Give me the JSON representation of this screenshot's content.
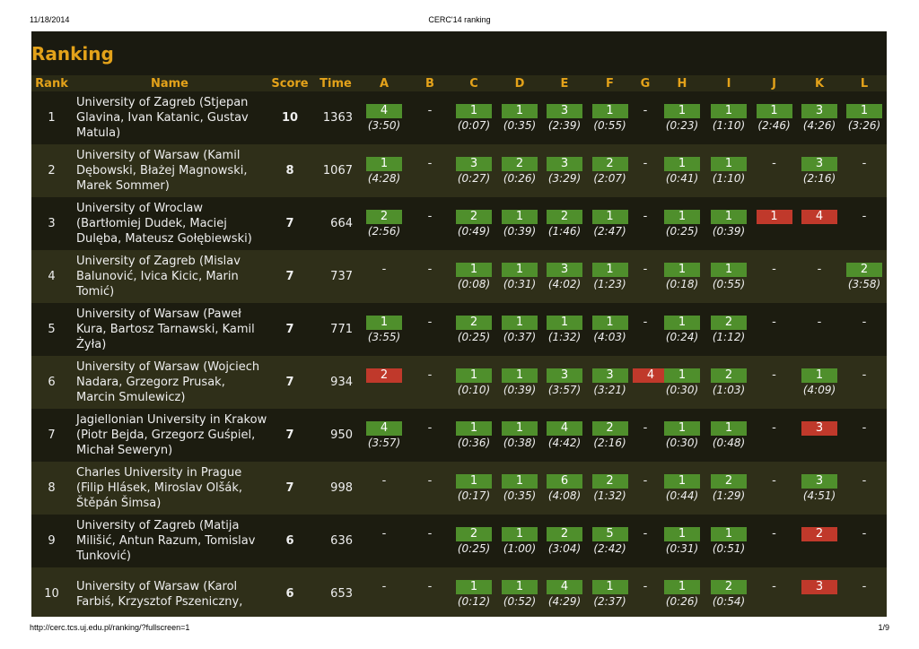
{
  "header": {
    "date": "11/18/2014",
    "title": "CERC'14 ranking"
  },
  "footer": {
    "url": "http://cerc.tcs.uj.edu.pl/ranking/?fullscreen=1",
    "page": "1/9"
  },
  "heading": "Ranking",
  "columns": [
    "Rank",
    "Name",
    "Score",
    "Time",
    "A",
    "B",
    "C",
    "D",
    "E",
    "F",
    "G",
    "H",
    "I",
    "J",
    "K",
    "L"
  ],
  "rows": [
    {
      "rank": 1,
      "name": "University of Zagreb (Stjepan Glavina, Ivan Katanic, Gustav Matula)",
      "score": 10,
      "time": 1363,
      "cells": [
        {
          "tries": 4,
          "time": "(3:50)",
          "solved": true
        },
        "-",
        {
          "tries": 1,
          "time": "(0:07)",
          "solved": true
        },
        {
          "tries": 1,
          "time": "(0:35)",
          "solved": true
        },
        {
          "tries": 3,
          "time": "(2:39)",
          "solved": true
        },
        {
          "tries": 1,
          "time": "(0:55)",
          "solved": true
        },
        "-",
        {
          "tries": 1,
          "time": "(0:23)",
          "solved": true
        },
        {
          "tries": 1,
          "time": "(1:10)",
          "solved": true
        },
        {
          "tries": 1,
          "time": "(2:46)",
          "solved": true
        },
        {
          "tries": 3,
          "time": "(4:26)",
          "solved": true
        },
        {
          "tries": 1,
          "time": "(3:26)",
          "solved": true
        }
      ]
    },
    {
      "rank": 2,
      "name": "University of Warsaw (Kamil Dębowski, Błażej Magnowski, Marek Sommer)",
      "score": 8,
      "time": 1067,
      "cells": [
        {
          "tries": 1,
          "time": "(4:28)",
          "solved": true
        },
        "-",
        {
          "tries": 3,
          "time": "(0:27)",
          "solved": true
        },
        {
          "tries": 2,
          "time": "(0:26)",
          "solved": true
        },
        {
          "tries": 3,
          "time": "(3:29)",
          "solved": true
        },
        {
          "tries": 2,
          "time": "(2:07)",
          "solved": true
        },
        "-",
        {
          "tries": 1,
          "time": "(0:41)",
          "solved": true
        },
        {
          "tries": 1,
          "time": "(1:10)",
          "solved": true
        },
        "-",
        {
          "tries": 3,
          "time": "(2:16)",
          "solved": true
        },
        "-"
      ]
    },
    {
      "rank": 3,
      "name": "University of Wroclaw (Bartłomiej Dudek, Maciej Dulęba, Mateusz Gołębiewski)",
      "score": 7,
      "time": 664,
      "cells": [
        {
          "tries": 2,
          "time": "(2:56)",
          "solved": true
        },
        "-",
        {
          "tries": 2,
          "time": "(0:49)",
          "solved": true
        },
        {
          "tries": 1,
          "time": "(0:39)",
          "solved": true
        },
        {
          "tries": 2,
          "time": "(1:46)",
          "solved": true
        },
        {
          "tries": 1,
          "time": "(2:47)",
          "solved": true
        },
        "-",
        {
          "tries": 1,
          "time": "(0:25)",
          "solved": true
        },
        {
          "tries": 1,
          "time": "(0:39)",
          "solved": true
        },
        {
          "tries": 1,
          "solved": false
        },
        {
          "tries": 4,
          "solved": false
        },
        "-"
      ]
    },
    {
      "rank": 4,
      "name": "University of Zagreb (Mislav Balunović, Ivica Kicic, Marin Tomić)",
      "score": 7,
      "time": 737,
      "cells": [
        "-",
        "-",
        {
          "tries": 1,
          "time": "(0:08)",
          "solved": true
        },
        {
          "tries": 1,
          "time": "(0:31)",
          "solved": true
        },
        {
          "tries": 3,
          "time": "(4:02)",
          "solved": true
        },
        {
          "tries": 1,
          "time": "(1:23)",
          "solved": true
        },
        "-",
        {
          "tries": 1,
          "time": "(0:18)",
          "solved": true
        },
        {
          "tries": 1,
          "time": "(0:55)",
          "solved": true
        },
        "-",
        "-",
        {
          "tries": 2,
          "time": "(3:58)",
          "solved": true
        }
      ]
    },
    {
      "rank": 5,
      "name": "University of Warsaw (Paweł Kura, Bartosz Tarnawski, Kamil Żyła)",
      "score": 7,
      "time": 771,
      "cells": [
        {
          "tries": 1,
          "time": "(3:55)",
          "solved": true
        },
        "-",
        {
          "tries": 2,
          "time": "(0:25)",
          "solved": true
        },
        {
          "tries": 1,
          "time": "(0:37)",
          "solved": true
        },
        {
          "tries": 1,
          "time": "(1:32)",
          "solved": true
        },
        {
          "tries": 1,
          "time": "(4:03)",
          "solved": true
        },
        "-",
        {
          "tries": 1,
          "time": "(0:24)",
          "solved": true
        },
        {
          "tries": 2,
          "time": "(1:12)",
          "solved": true
        },
        "-",
        "-",
        "-"
      ]
    },
    {
      "rank": 6,
      "name": "University of Warsaw (Wojciech Nadara, Grzegorz Prusak, Marcin Smulewicz)",
      "score": 7,
      "time": 934,
      "cells": [
        {
          "tries": 2,
          "solved": false
        },
        "-",
        {
          "tries": 1,
          "time": "(0:10)",
          "solved": true
        },
        {
          "tries": 1,
          "time": "(0:39)",
          "solved": true
        },
        {
          "tries": 3,
          "time": "(3:57)",
          "solved": true
        },
        {
          "tries": 3,
          "time": "(3:21)",
          "solved": true
        },
        {
          "tries": 4,
          "solved": false
        },
        {
          "tries": 1,
          "time": "(0:30)",
          "solved": true
        },
        {
          "tries": 2,
          "time": "(1:03)",
          "solved": true
        },
        "-",
        {
          "tries": 1,
          "time": "(4:09)",
          "solved": true
        },
        "-"
      ]
    },
    {
      "rank": 7,
      "name": "Jagiellonian University in Krakow (Piotr Bejda, Grzegorz Guśpiel, Michał Seweryn)",
      "score": 7,
      "time": 950,
      "cells": [
        {
          "tries": 4,
          "time": "(3:57)",
          "solved": true
        },
        "-",
        {
          "tries": 1,
          "time": "(0:36)",
          "solved": true
        },
        {
          "tries": 1,
          "time": "(0:38)",
          "solved": true
        },
        {
          "tries": 4,
          "time": "(4:42)",
          "solved": true
        },
        {
          "tries": 2,
          "time": "(2:16)",
          "solved": true
        },
        "-",
        {
          "tries": 1,
          "time": "(0:30)",
          "solved": true
        },
        {
          "tries": 1,
          "time": "(0:48)",
          "solved": true
        },
        "-",
        {
          "tries": 3,
          "solved": false
        },
        "-"
      ]
    },
    {
      "rank": 8,
      "name": "Charles University in Prague (Filip Hlásek, Miroslav Olšák, Štěpán Šimsa)",
      "score": 7,
      "time": 998,
      "cells": [
        "-",
        "-",
        {
          "tries": 1,
          "time": "(0:17)",
          "solved": true
        },
        {
          "tries": 1,
          "time": "(0:35)",
          "solved": true
        },
        {
          "tries": 6,
          "time": "(4:08)",
          "solved": true
        },
        {
          "tries": 2,
          "time": "(1:32)",
          "solved": true
        },
        "-",
        {
          "tries": 1,
          "time": "(0:44)",
          "solved": true
        },
        {
          "tries": 2,
          "time": "(1:29)",
          "solved": true
        },
        "-",
        {
          "tries": 3,
          "time": "(4:51)",
          "solved": true
        },
        "-"
      ]
    },
    {
      "rank": 9,
      "name": "University of Zagreb (Matija Milišić, Antun Razum, Tomislav Tunković)",
      "score": 6,
      "time": 636,
      "cells": [
        "-",
        "-",
        {
          "tries": 2,
          "time": "(0:25)",
          "solved": true
        },
        {
          "tries": 1,
          "time": "(1:00)",
          "solved": true
        },
        {
          "tries": 2,
          "time": "(3:04)",
          "solved": true
        },
        {
          "tries": 5,
          "time": "(2:42)",
          "solved": true
        },
        "-",
        {
          "tries": 1,
          "time": "(0:31)",
          "solved": true
        },
        {
          "tries": 1,
          "time": "(0:51)",
          "solved": true
        },
        "-",
        {
          "tries": 2,
          "solved": false
        },
        "-"
      ]
    },
    {
      "rank": 10,
      "name": "University of Warsaw (Karol Farbiś, Krzysztof Pszeniczny,",
      "score": 6,
      "time": 653,
      "cells": [
        "-",
        "-",
        {
          "tries": 1,
          "time": "(0:12)",
          "solved": true
        },
        {
          "tries": 1,
          "time": "(0:52)",
          "solved": true
        },
        {
          "tries": 4,
          "time": "(4:29)",
          "solved": true
        },
        {
          "tries": 1,
          "time": "(2:37)",
          "solved": true
        },
        "-",
        {
          "tries": 1,
          "time": "(0:26)",
          "solved": true
        },
        {
          "tries": 2,
          "time": "(0:54)",
          "solved": true
        },
        "-",
        {
          "tries": 3,
          "solved": false
        },
        "-"
      ]
    }
  ]
}
